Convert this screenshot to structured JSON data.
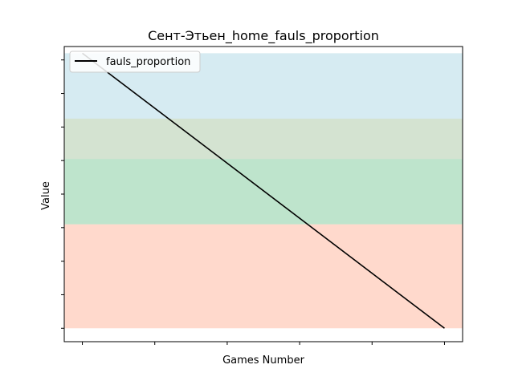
{
  "colors": {
    "line": "#000000",
    "band_top": "#add8e6",
    "band_upper_mid": "#a9c7a3",
    "band_lower_mid": "#7ec99a",
    "band_bottom": "#ffb399",
    "frame": "#000000",
    "legend_border": "#cccccc"
  },
  "chart_data": {
    "type": "line",
    "title": "Сент-Этьен_home_fauls_proportion",
    "xlabel": "Games Number",
    "ylabel": "Value",
    "grid": false,
    "legend_location": "top-left",
    "x_ticks_labeled": false,
    "y_ticks_labeled": false,
    "xlim": [
      -0.25,
      5.25
    ],
    "ylim": [
      -0.04,
      0.84
    ],
    "x_ticks": [
      0,
      1,
      2,
      3,
      4,
      5
    ],
    "y_ticks": [
      0,
      0.1,
      0.2,
      0.3,
      0.4,
      0.5,
      0.6,
      0.7,
      0.8
    ],
    "bands": [
      {
        "from": 0.0,
        "to": 0.31,
        "color_key": "band_bottom"
      },
      {
        "from": 0.31,
        "to": 0.505,
        "color_key": "band_lower_mid"
      },
      {
        "from": 0.505,
        "to": 0.625,
        "color_key": "band_upper_mid"
      },
      {
        "from": 0.625,
        "to": 0.82,
        "color_key": "band_top"
      }
    ],
    "series": [
      {
        "name": "fauls_proportion",
        "x": [
          0,
          5
        ],
        "values": [
          0.82,
          0.0
        ]
      }
    ]
  }
}
